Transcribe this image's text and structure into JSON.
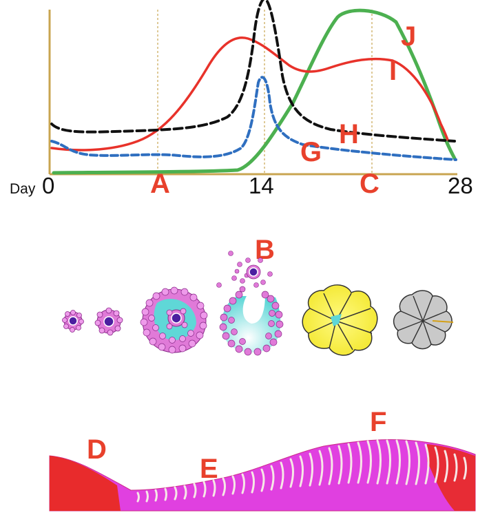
{
  "hormone_chart": {
    "day_prefix": "Day",
    "day_ticks": [
      "0",
      "14",
      "28"
    ],
    "phase_labels": [
      "A",
      "C"
    ],
    "ovulation_label": "B",
    "curve_labels": [
      "G",
      "H",
      "I",
      "J"
    ],
    "colors": {
      "axis": "#c8a550",
      "gridline": "#c8a550",
      "black_dashed": "#111111",
      "blue_dashed": "#2f6fc0",
      "red_solid": "#e8322a",
      "green_solid": "#4cb050",
      "labels": "#e8412c"
    }
  },
  "follicle_stages": {
    "items": [
      "primordial-follicle",
      "primary-follicle",
      "secondary-follicle",
      "ruptured-follicle-with-released-oocyte",
      "corpus-luteum",
      "corpus-albicans"
    ],
    "colors": {
      "granulosa": "#e07ad8",
      "oocyte": "#4b1fa0",
      "antrum": "#5fd7d7",
      "corpus_luteum": "#f2ec3a",
      "corpus_albicans": "#c9c9c9"
    }
  },
  "endometrium": {
    "labels": [
      "D",
      "E",
      "F"
    ],
    "colors": {
      "tissue": "#e040e0",
      "menses": "#e82a22",
      "glands": "#f6e6e6"
    }
  }
}
